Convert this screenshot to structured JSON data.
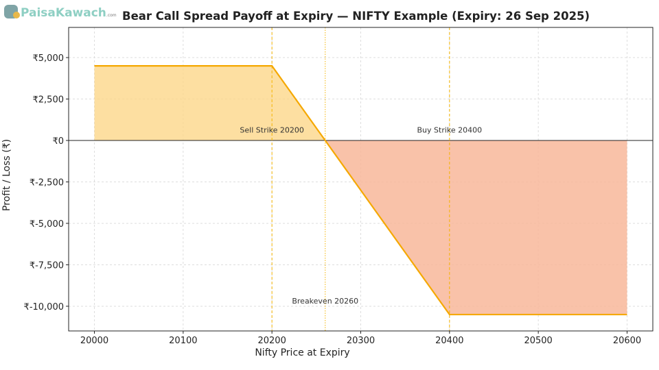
{
  "logo": {
    "text": "PaisaKawach",
    "suffix": ".com"
  },
  "chart_data": {
    "type": "line",
    "title": "Bear Call Spread Payoff at Expiry — NIFTY Example (Expiry: 26 Sep 2025)",
    "xlabel": "Nifty Price at Expiry",
    "ylabel": "Profit / Loss (₹)",
    "x": [
      20000,
      20200,
      20260,
      20400,
      20600
    ],
    "y": [
      4500,
      4500,
      0,
      -10500,
      -10500
    ],
    "xlim": [
      19971,
      20629
    ],
    "ylim": [
      -11490,
      6820
    ],
    "xticks": [
      20000,
      20100,
      20200,
      20300,
      20400,
      20500,
      20600
    ],
    "xtick_labels": [
      "20000",
      "20100",
      "20200",
      "20300",
      "20400",
      "20500",
      "20600"
    ],
    "yticks": [
      5000,
      2500,
      0,
      -2500,
      -5000,
      -7500,
      -10000
    ],
    "ytick_labels": [
      "₹5,000",
      "₹2,500",
      "₹0",
      "₹-2,500",
      "₹-5,000",
      "₹-7,500",
      "₹-10,000"
    ],
    "grid": true,
    "vlines": [
      {
        "x": 20200,
        "style": "dashed",
        "label": "Sell Strike 20200",
        "label_y": 300
      },
      {
        "x": 20400,
        "style": "dashed",
        "label": "Buy Strike 20400",
        "label_y": 300
      },
      {
        "x": 20260,
        "style": "dotted",
        "label": "Breakeven 20260",
        "label_y": -10000
      }
    ],
    "fills": {
      "profit": "#fdd78a",
      "loss": "#f8b79a"
    },
    "colors": {
      "line": "#f5a800",
      "vline": "#f5b400",
      "zero": "#222222"
    }
  }
}
